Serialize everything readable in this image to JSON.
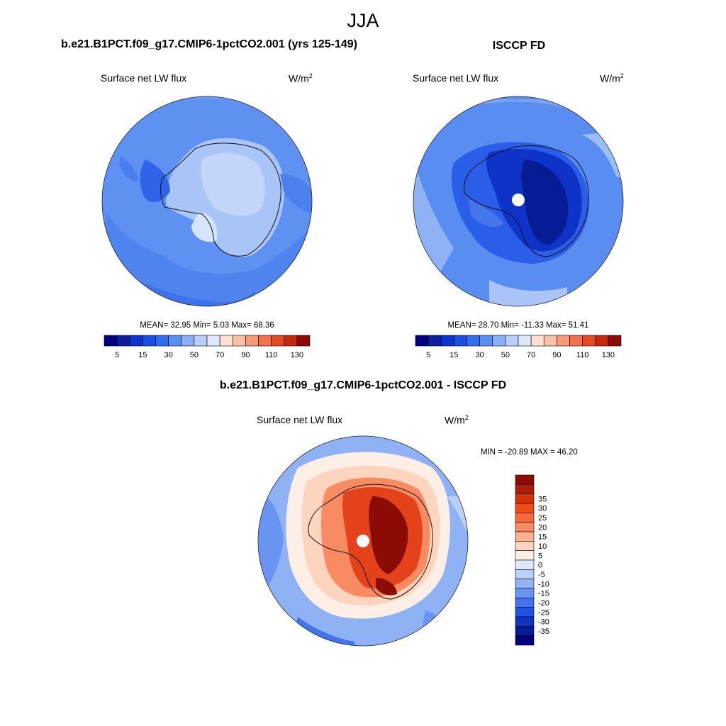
{
  "figure": {
    "season": "JJA"
  },
  "panels": {
    "left": {
      "title": "b.e21.B1PCT.f09_g17.CMIP6-1pctCO2.001 (yrs 125-149)",
      "variable": "Surface net LW flux",
      "units_base": "W/m",
      "units_exp": "2",
      "stats": "MEAN=  32.95  Min=   5.03  Max=  68.36"
    },
    "right": {
      "title": "ISCCP FD",
      "variable": "Surface net LW flux",
      "units_base": "W/m",
      "units_exp": "2",
      "stats": "MEAN=  28.70  Min= -11.33  Max=  51.41"
    },
    "diff": {
      "title": "b.e21.B1PCT.f09_g17.CMIP6-1pctCO2.001 - ISCCP FD",
      "variable": "Surface net LW flux",
      "units_base": "W/m",
      "units_exp": "2",
      "stats": "MIN = -20.89 MAX =  46.20"
    }
  },
  "chart_data": [
    {
      "type": "heatmap",
      "projection": "south polar stereographic",
      "title": "b.e21.B1PCT.f09_g17.CMIP6-1pctCO2.001 (yrs 125-149)",
      "variable": "Surface net LW flux",
      "units": "W/m2",
      "mean": 32.95,
      "min": 5.03,
      "max": 68.36,
      "colorbar": {
        "orientation": "horizontal",
        "colors": [
          "#00007f",
          "#0a1ea0",
          "#0d34cc",
          "#1a4fe6",
          "#2f6ef0",
          "#5a8ff2",
          "#8cb0f5",
          "#b8cff8",
          "#dce9fb",
          "#fde1d0",
          "#fbc0a5",
          "#f79a78",
          "#f2704c",
          "#e34a26",
          "#c52a10",
          "#8a0c04"
        ],
        "ticks": [
          "5",
          "15",
          "30",
          "50",
          "70",
          "90",
          "110",
          "130"
        ]
      }
    },
    {
      "type": "heatmap",
      "projection": "south polar stereographic",
      "title": "ISCCP FD",
      "variable": "Surface net LW flux",
      "units": "W/m2",
      "mean": 28.7,
      "min": -11.33,
      "max": 51.41,
      "colorbar": {
        "orientation": "horizontal",
        "colors": [
          "#00007f",
          "#0a1ea0",
          "#0d34cc",
          "#1a4fe6",
          "#2f6ef0",
          "#5a8ff2",
          "#8cb0f5",
          "#b8cff8",
          "#dce9fb",
          "#fde1d0",
          "#fbc0a5",
          "#f79a78",
          "#f2704c",
          "#e34a26",
          "#c52a10",
          "#8a0c04"
        ],
        "ticks": [
          "5",
          "15",
          "30",
          "50",
          "70",
          "90",
          "110",
          "130"
        ]
      }
    },
    {
      "type": "heatmap",
      "projection": "south polar stereographic",
      "title": "b.e21.B1PCT.f09_g17.CMIP6-1pctCO2.001 - ISCCP FD",
      "variable": "Surface net LW flux",
      "units": "W/m2",
      "min": -20.89,
      "max": 46.2,
      "colorbar": {
        "orientation": "vertical",
        "colors": [
          "#8a0c04",
          "#b01d05",
          "#d63208",
          "#f24a10",
          "#f7693a",
          "#f98b63",
          "#fbb08f",
          "#fdd5bf",
          "#fdeee6",
          "#dde9fb",
          "#b9d0f8",
          "#8fb2f4",
          "#6a94f1",
          "#4274ee",
          "#1c52e6",
          "#0e34c0",
          "#061c95",
          "#00007f"
        ],
        "ticks": [
          "35",
          "30",
          "25",
          "20",
          "15",
          "10",
          "5",
          "0",
          "-5",
          "-10",
          "-15",
          "-20",
          "-25",
          "-30",
          "-35"
        ]
      }
    }
  ]
}
